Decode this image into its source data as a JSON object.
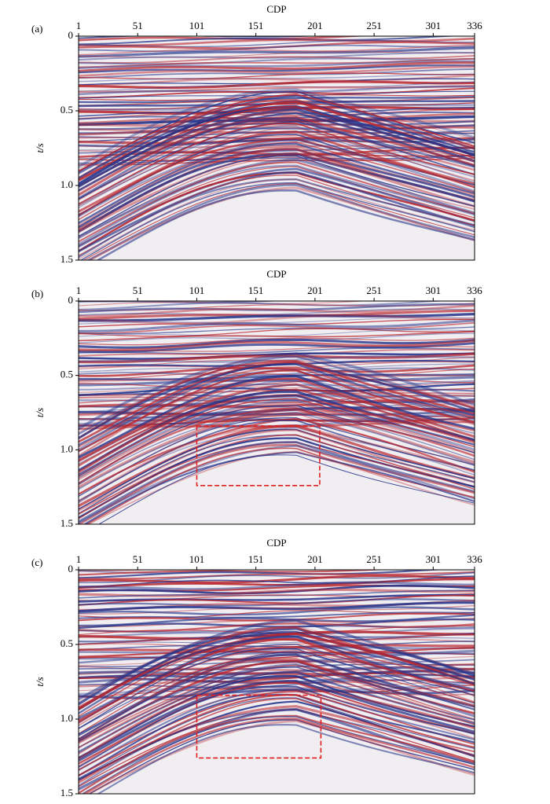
{
  "chart_data": [
    {
      "type": "seismic",
      "panel_label": "(a)",
      "xlabel": "CDP",
      "ylabel": "t/s",
      "xlim": [
        1,
        336
      ],
      "xticks": [
        1,
        51,
        101,
        151,
        201,
        251,
        301,
        336
      ],
      "ylim": [
        0,
        1.5
      ],
      "yticks": [
        0,
        0.5,
        {
          "value": 1,
          "label": "1.0"
        },
        1.5
      ]
    },
    {
      "type": "seismic",
      "panel_label": "(b)",
      "xlabel": "CDP",
      "ylabel": "t/s",
      "xlim": [
        1,
        336
      ],
      "xticks": [
        1,
        51,
        101,
        151,
        201,
        251,
        301,
        336
      ],
      "ylim": [
        0,
        1.5
      ],
      "yticks": [
        0,
        0.5,
        {
          "value": 1,
          "label": "1.0"
        },
        1.5
      ],
      "box": {
        "x": [
          101,
          205
        ],
        "y": [
          0.84,
          1.24
        ],
        "color": "#e02020"
      }
    },
    {
      "type": "seismic",
      "panel_label": "(c)",
      "xlabel": "CDP",
      "ylabel": "t/s",
      "xlim": [
        1,
        336
      ],
      "xticks": [
        1,
        51,
        101,
        151,
        201,
        251,
        301,
        336
      ],
      "ylim": [
        0,
        1.5
      ],
      "yticks": [
        0,
        0.5,
        {
          "value": 1,
          "label": "1.0"
        },
        1.5
      ],
      "box": {
        "x": [
          101,
          206
        ],
        "y": [
          0.84,
          1.26
        ],
        "color": "#e02020"
      }
    }
  ]
}
